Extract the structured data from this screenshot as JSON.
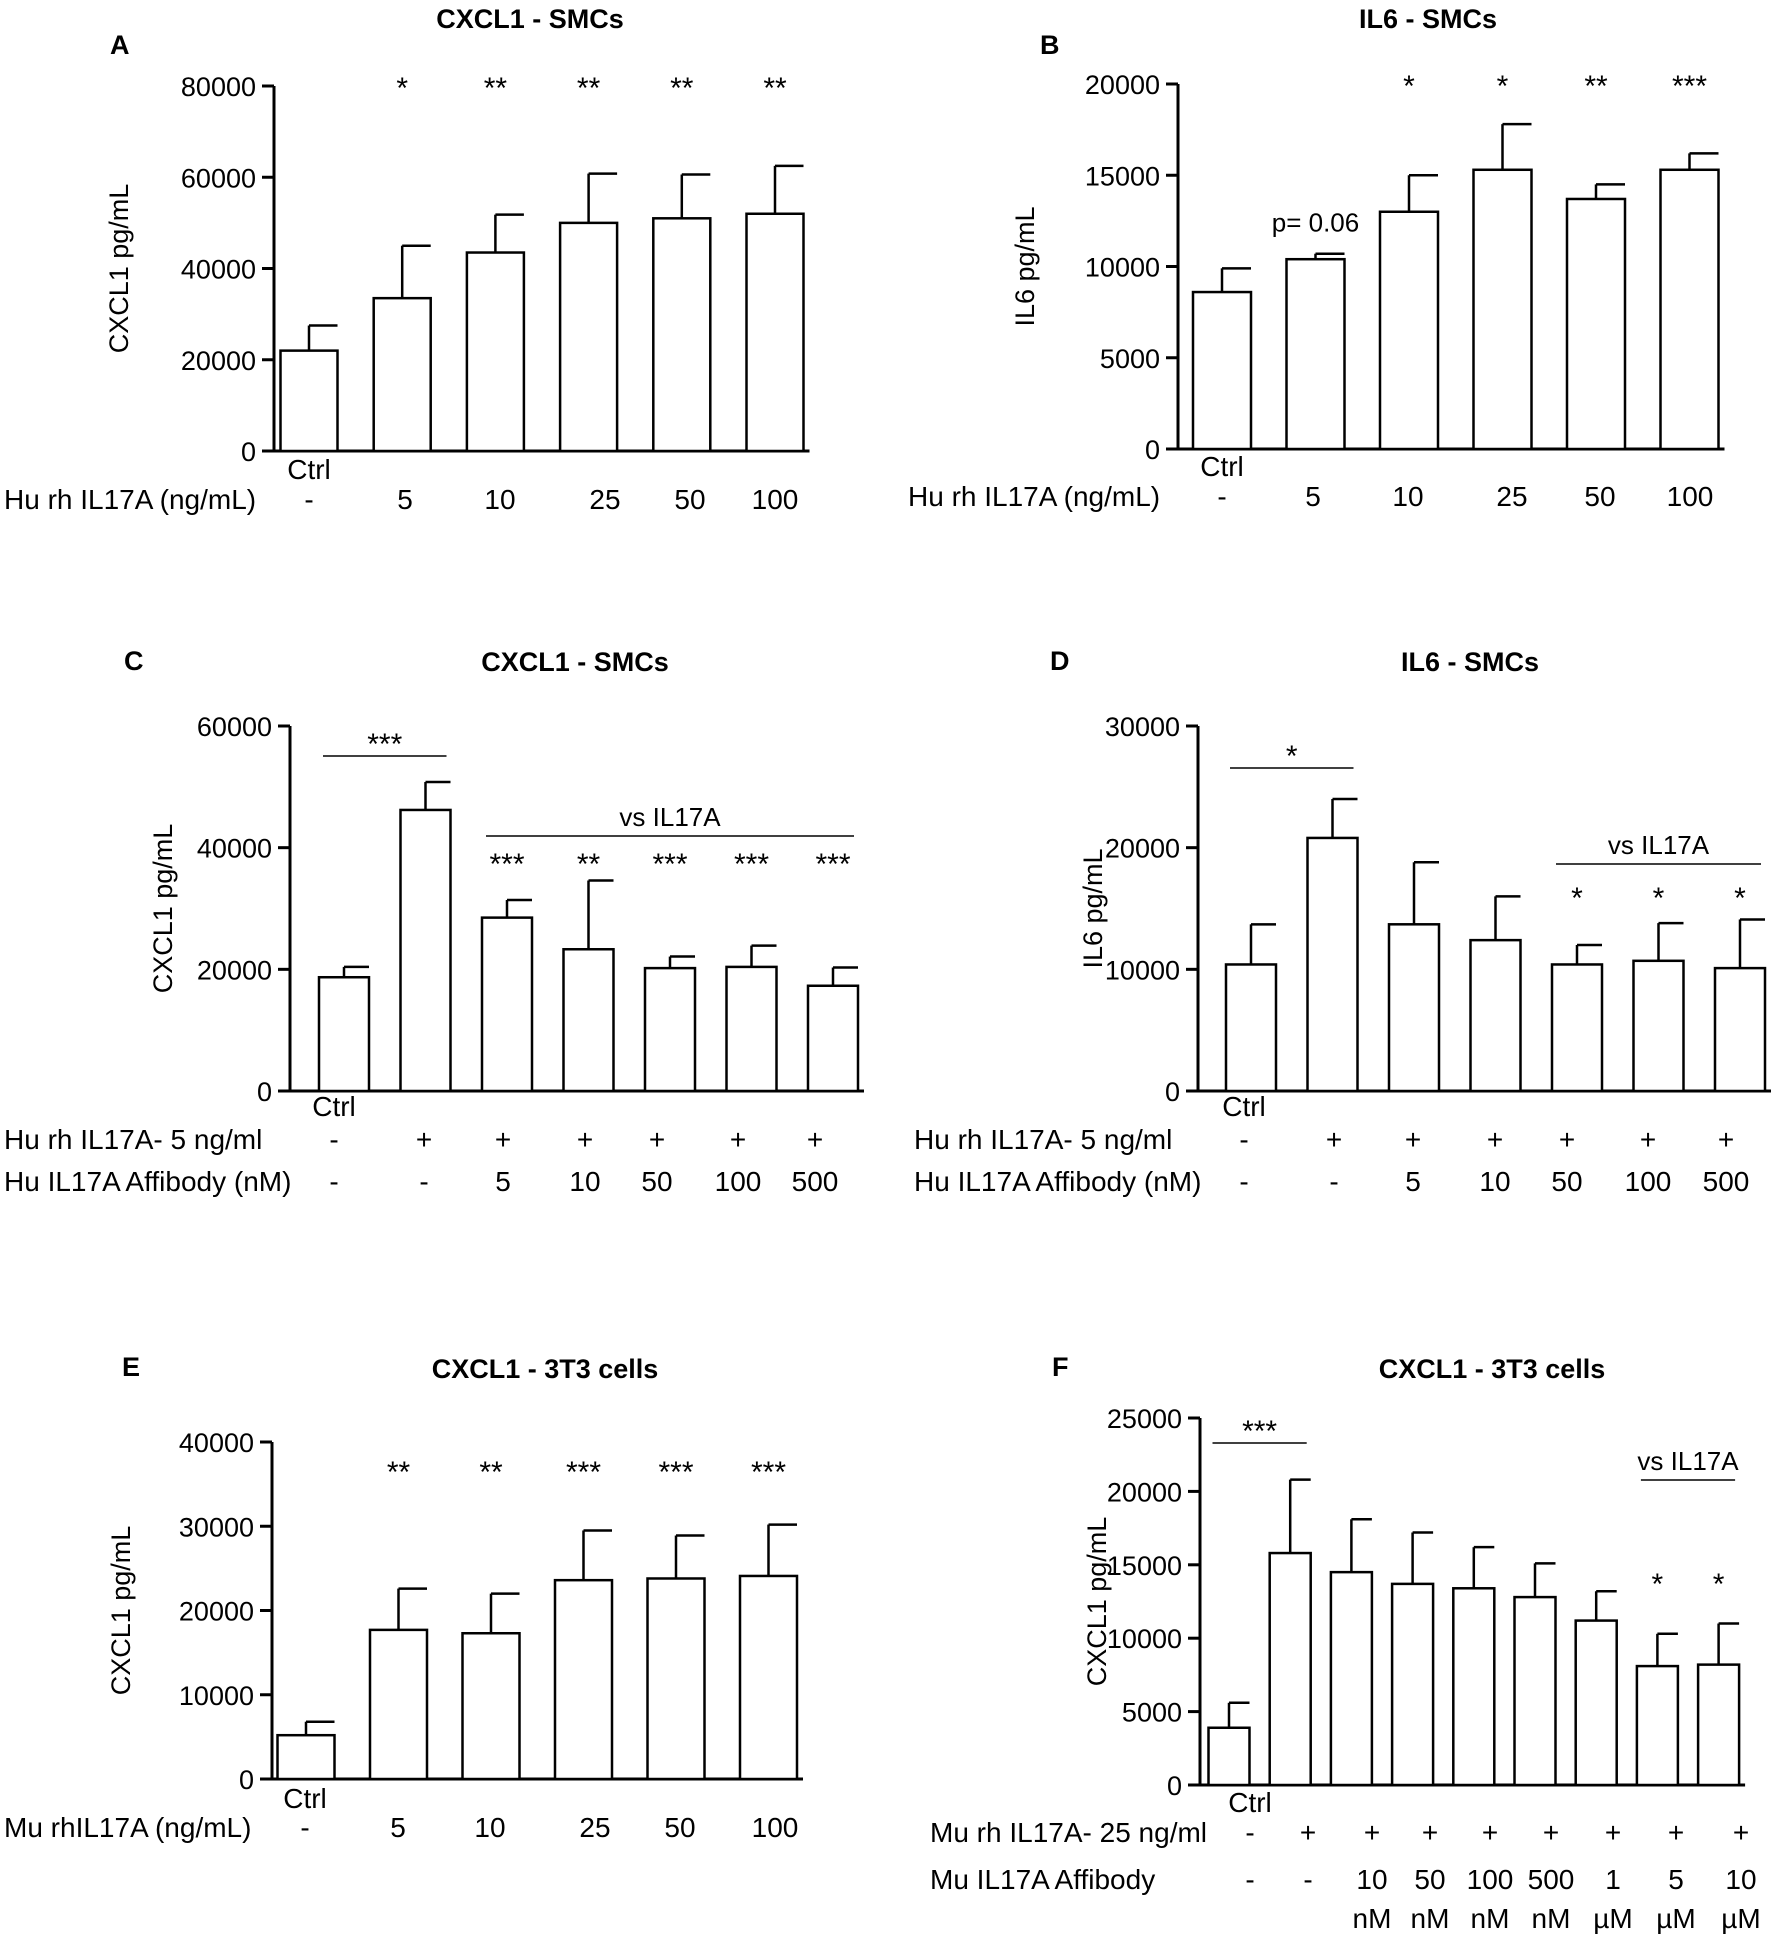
{
  "chart_data": [
    {
      "id": "A",
      "letter": "A",
      "type": "bar",
      "title": "CXCL1 - SMCs",
      "ylabel": "CXCL1 pg/mL",
      "ylim": [
        0,
        80000
      ],
      "yticks": [
        0,
        20000,
        40000,
        60000,
        80000
      ],
      "ctrl_label": "Ctrl",
      "row_labels": [
        "Hu rh IL17A (ng/mL)"
      ],
      "rows": [
        [
          "-",
          "5",
          "10",
          "25",
          "50",
          "100"
        ]
      ],
      "values": [
        22000,
        33500,
        43500,
        50000,
        51000,
        52000
      ],
      "errors": [
        5500,
        11500,
        8300,
        10800,
        9600,
        10500
      ],
      "stars": [
        "",
        "*",
        "**",
        "**",
        "**",
        "**"
      ],
      "annotations": []
    },
    {
      "id": "B",
      "letter": "B",
      "type": "bar",
      "title": "IL6 - SMCs",
      "ylabel": "IL6 pg/mL",
      "ylim": [
        0,
        20000
      ],
      "yticks": [
        0,
        5000,
        10000,
        15000,
        20000
      ],
      "ctrl_label": "Ctrl",
      "row_labels": [
        "Hu rh IL17A (ng/mL)"
      ],
      "rows": [
        [
          "-",
          "5",
          "10",
          "25",
          "50",
          "100"
        ]
      ],
      "values": [
        8600,
        10400,
        13000,
        15300,
        13700,
        15300
      ],
      "errors": [
        1300,
        300,
        2000,
        2500,
        800,
        900
      ],
      "stars": [
        "",
        "p= 0.06",
        "*",
        "*",
        "**",
        "***"
      ],
      "annotations": []
    },
    {
      "id": "C",
      "letter": "C",
      "type": "bar",
      "title": "CXCL1 - SMCs",
      "ylabel": "CXCL1 pg/mL",
      "ylim": [
        0,
        60000
      ],
      "yticks": [
        0,
        20000,
        40000,
        60000
      ],
      "ctrl_label": "Ctrl",
      "row_labels": [
        "Hu rh IL17A- 5 ng/ml",
        "Hu IL17A Affibody (nM)"
      ],
      "rows": [
        [
          "-",
          "+",
          "+",
          "+",
          "+",
          "+",
          "+"
        ],
        [
          "-",
          "-",
          "5",
          "10",
          "50",
          "100",
          "500"
        ]
      ],
      "values": [
        18700,
        46200,
        28500,
        23300,
        20200,
        20400,
        17300
      ],
      "errors": [
        1700,
        4600,
        2900,
        11300,
        1900,
        3500,
        3000
      ],
      "stars": [
        "",
        "",
        "***",
        "**",
        "***",
        "***",
        "***"
      ],
      "annotations": [
        {
          "from": 0,
          "to": 1,
          "text": "***"
        },
        {
          "from": 2,
          "to": 6,
          "text": "vs IL17A"
        }
      ]
    },
    {
      "id": "D",
      "letter": "D",
      "type": "bar",
      "title": "IL6 - SMCs",
      "ylabel": "IL6 pg/mL",
      "ylim": [
        0,
        30000
      ],
      "yticks": [
        0,
        10000,
        20000,
        30000
      ],
      "ctrl_label": "Ctrl",
      "row_labels": [
        "Hu rh IL17A- 5 ng/ml",
        "Hu IL17A Affibody (nM)"
      ],
      "rows": [
        [
          "-",
          "+",
          "+",
          "+",
          "+",
          "+",
          "+"
        ],
        [
          "-",
          "-",
          "5",
          "10",
          "50",
          "100",
          "500"
        ]
      ],
      "values": [
        10400,
        20800,
        13700,
        12400,
        10400,
        10700,
        10100
      ],
      "errors": [
        3300,
        3200,
        5100,
        3600,
        1600,
        3100,
        4000
      ],
      "stars": [
        "",
        "",
        "",
        "",
        "*",
        "*",
        "*"
      ],
      "annotations": [
        {
          "from": 0,
          "to": 1,
          "text": "*"
        },
        {
          "from": 4,
          "to": 6,
          "text": "vs IL17A"
        }
      ]
    },
    {
      "id": "E",
      "letter": "E",
      "type": "bar",
      "title": "CXCL1 - 3T3 cells",
      "ylabel": "CXCL1 pg/mL",
      "ylim": [
        0,
        40000
      ],
      "yticks": [
        0,
        10000,
        20000,
        30000,
        40000
      ],
      "ctrl_label": "Ctrl",
      "row_labels": [
        "Mu rhIL17A (ng/mL)"
      ],
      "rows": [
        [
          "-",
          "5",
          "10",
          "25",
          "50",
          "100"
        ]
      ],
      "values": [
        5200,
        17700,
        17300,
        23600,
        23800,
        24100
      ],
      "errors": [
        1600,
        4900,
        4700,
        5900,
        5100,
        6100
      ],
      "stars": [
        "",
        "**",
        "**",
        "***",
        "***",
        "***"
      ],
      "annotations": []
    },
    {
      "id": "F",
      "letter": "F",
      "type": "bar",
      "title": "CXCL1 - 3T3 cells",
      "ylabel": "CXCL1 pg/mL",
      "ylim": [
        0,
        25000
      ],
      "yticks": [
        0,
        5000,
        10000,
        15000,
        20000,
        25000
      ],
      "ctrl_label": "Ctrl",
      "row_labels": [
        "Mu rh IL17A- 25 ng/ml",
        "Mu IL17A Affibody"
      ],
      "rows": [
        [
          "-",
          "+",
          "+",
          "+",
          "+",
          "+",
          "+",
          "+",
          "+"
        ],
        [
          "-",
          "-",
          "10",
          "50",
          "100",
          "500",
          "1",
          "5",
          "10"
        ],
        [
          "",
          "",
          "nM",
          "nM",
          "nM",
          "nM",
          "µM",
          "µM",
          "µM"
        ]
      ],
      "values": [
        3900,
        15800,
        14500,
        13700,
        13400,
        12800,
        11200,
        8100,
        8200
      ],
      "errors": [
        1700,
        5000,
        3600,
        3500,
        2800,
        2300,
        2000,
        2200,
        2800
      ],
      "stars": [
        "",
        "",
        "",
        "",
        "",
        "",
        "",
        "*",
        "*"
      ],
      "annotations": [
        {
          "from": 0,
          "to": 1,
          "text": "***"
        },
        {
          "from": 7,
          "to": 8,
          "text": "vs IL17A"
        }
      ]
    }
  ]
}
